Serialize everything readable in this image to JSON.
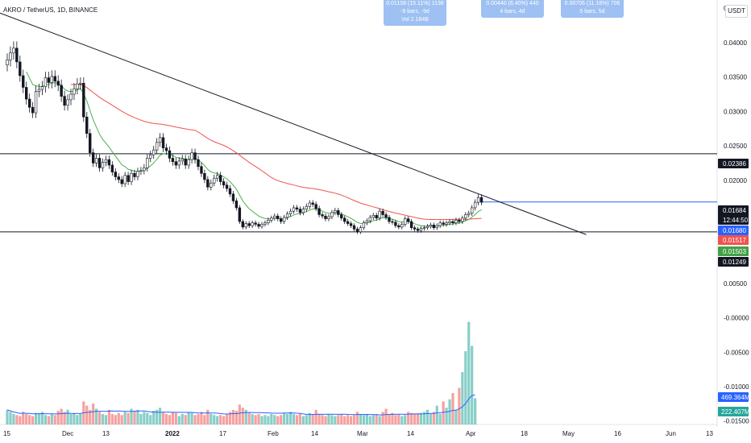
{
  "header": {
    "title": "AKRO / TetherUS, 1D, BINANCE",
    "currency_button": "USDT"
  },
  "measures": [
    {
      "line1": "0.01138 (15.11%) 1138",
      "line2": "-9 bars, -9d",
      "line3": "Vol 2.184B"
    },
    {
      "line1": "0.00440 (6.40%) 440",
      "line2": "4 bars, 4d",
      "line3": ""
    },
    {
      "line1": "0.00706 (11.18%) 706",
      "line2": "5 bars, 5d",
      "line3": ""
    }
  ],
  "colors": {
    "up": "#26a69a",
    "down": "#ef5350",
    "ma_fast": "#4caf50",
    "ma_slow": "#ef5350",
    "vol_ma": "#2962ff",
    "hline": "#131722",
    "trend": "#131722",
    "price_line": "#2962ff"
  },
  "chart_data": {
    "type": "candlestick",
    "title": "AKRO / TetherUS, 1D, BINANCE",
    "price_axis": {
      "range": [
        -0.0155,
        0.0462
      ],
      "ticks": [
        "0.04500",
        "0.04000",
        "0.03500",
        "0.03000",
        "0.02500",
        "0.02000",
        "0.01500",
        "0.01000",
        "0.00500",
        "-0.00000",
        "-0.00500",
        "-0.01000",
        "-0.01500"
      ]
    },
    "time_axis": {
      "labels": [
        "15",
        "Dec",
        "13",
        "2022",
        "17",
        "Feb",
        "14",
        "Mar",
        "14",
        "Apr",
        "18",
        "May",
        "16",
        "Jun",
        "13"
      ]
    },
    "price_tags": [
      {
        "value": "0.02386",
        "bg": "#131722"
      },
      {
        "value": "0.01684",
        "sub": "12:44:50",
        "bg": "#131722"
      },
      {
        "value": "0.01680",
        "bg": "#2962ff"
      },
      {
        "value": "0.01517",
        "bg": "#ef5350"
      },
      {
        "value": "0.01503",
        "bg": "#43a047"
      },
      {
        "value": "0.01249",
        "bg": "#131722"
      }
    ],
    "volume_tags": [
      {
        "value": "469.364M",
        "bg": "#2962ff"
      },
      {
        "value": "222.407M",
        "bg": "#26a69a"
      }
    ],
    "horizontal_lines": [
      0.02386,
      0.01249
    ],
    "trendline": {
      "start": {
        "index": 0,
        "price": 0.0443
      },
      "end": {
        "index": 150,
        "price": 0.0121
      }
    },
    "current_price": 0.01684,
    "closes": [
      0.0375,
      0.0385,
      0.0392,
      0.0372,
      0.0352,
      0.0335,
      0.0318,
      0.0306,
      0.0298,
      0.0329,
      0.0332,
      0.0336,
      0.0349,
      0.0342,
      0.0351,
      0.0344,
      0.0338,
      0.0322,
      0.0309,
      0.0317,
      0.0325,
      0.0333,
      0.034,
      0.0341,
      0.0292,
      0.0268,
      0.024,
      0.0225,
      0.0232,
      0.0218,
      0.0226,
      0.023,
      0.0222,
      0.0212,
      0.0205,
      0.0201,
      0.0195,
      0.0207,
      0.0198,
      0.021,
      0.0205,
      0.0213,
      0.0214,
      0.0218,
      0.0232,
      0.0237,
      0.0244,
      0.0255,
      0.0262,
      0.0247,
      0.0243,
      0.0232,
      0.0227,
      0.0222,
      0.0228,
      0.0231,
      0.0222,
      0.023,
      0.024,
      0.023,
      0.022,
      0.021,
      0.0201,
      0.019,
      0.0196,
      0.0203,
      0.0207,
      0.0198,
      0.0193,
      0.0188,
      0.018,
      0.017,
      0.016,
      0.014,
      0.0132,
      0.0137,
      0.0134,
      0.0138,
      0.0136,
      0.0133,
      0.0136,
      0.0138,
      0.0142,
      0.0145,
      0.0148,
      0.0144,
      0.014,
      0.0146,
      0.0151,
      0.0155,
      0.016,
      0.0158,
      0.0153,
      0.0158,
      0.0162,
      0.0167,
      0.0165,
      0.0159,
      0.015,
      0.0148,
      0.0144,
      0.0147,
      0.0153,
      0.0156,
      0.015,
      0.0145,
      0.014,
      0.0137,
      0.0134,
      0.0129,
      0.0125,
      0.0131,
      0.0138,
      0.0141,
      0.0146,
      0.0149,
      0.0145,
      0.0155,
      0.015,
      0.0146,
      0.014,
      0.0139,
      0.0134,
      0.0132,
      0.0136,
      0.0144,
      0.014,
      0.0131,
      0.0129,
      0.0127,
      0.013,
      0.0131,
      0.0133,
      0.0135,
      0.0131,
      0.0134,
      0.0138,
      0.0136,
      0.0138,
      0.014,
      0.0138,
      0.0142,
      0.014,
      0.0145,
      0.015,
      0.0152,
      0.016,
      0.0168,
      0.0175,
      0.0168
    ],
    "volumes": [
      14,
      12,
      10,
      9,
      8,
      12,
      10,
      9,
      8,
      11,
      10,
      12,
      9,
      8,
      10,
      9,
      13,
      15,
      12,
      14,
      10,
      11,
      9,
      10,
      22,
      18,
      14,
      20,
      15,
      12,
      10,
      9,
      14,
      10,
      9,
      11,
      9,
      12,
      11,
      15,
      13,
      14,
      10,
      12,
      11,
      9,
      13,
      14,
      16,
      12,
      10,
      9,
      12,
      11,
      8,
      10,
      9,
      12,
      11,
      9,
      10,
      12,
      9,
      14,
      10,
      9,
      8,
      9,
      8,
      10,
      12,
      14,
      13,
      19,
      16,
      14,
      11,
      10,
      9,
      10,
      8,
      9,
      8,
      10,
      9,
      8,
      9,
      11,
      10,
      12,
      10,
      9,
      10,
      8,
      9,
      11,
      10,
      14,
      10,
      9,
      8,
      10,
      9,
      8,
      9,
      10,
      8,
      9,
      8,
      9,
      12,
      10,
      9,
      10,
      8,
      9,
      10,
      8,
      12,
      15,
      10,
      11,
      9,
      10,
      8,
      9,
      12,
      11,
      10,
      10,
      11,
      12,
      14,
      10,
      12,
      18,
      10,
      22,
      16,
      24,
      30,
      14,
      35,
      50,
      70,
      98,
      75,
      25
    ],
    "volume_range": [
      0,
      100
    ]
  }
}
